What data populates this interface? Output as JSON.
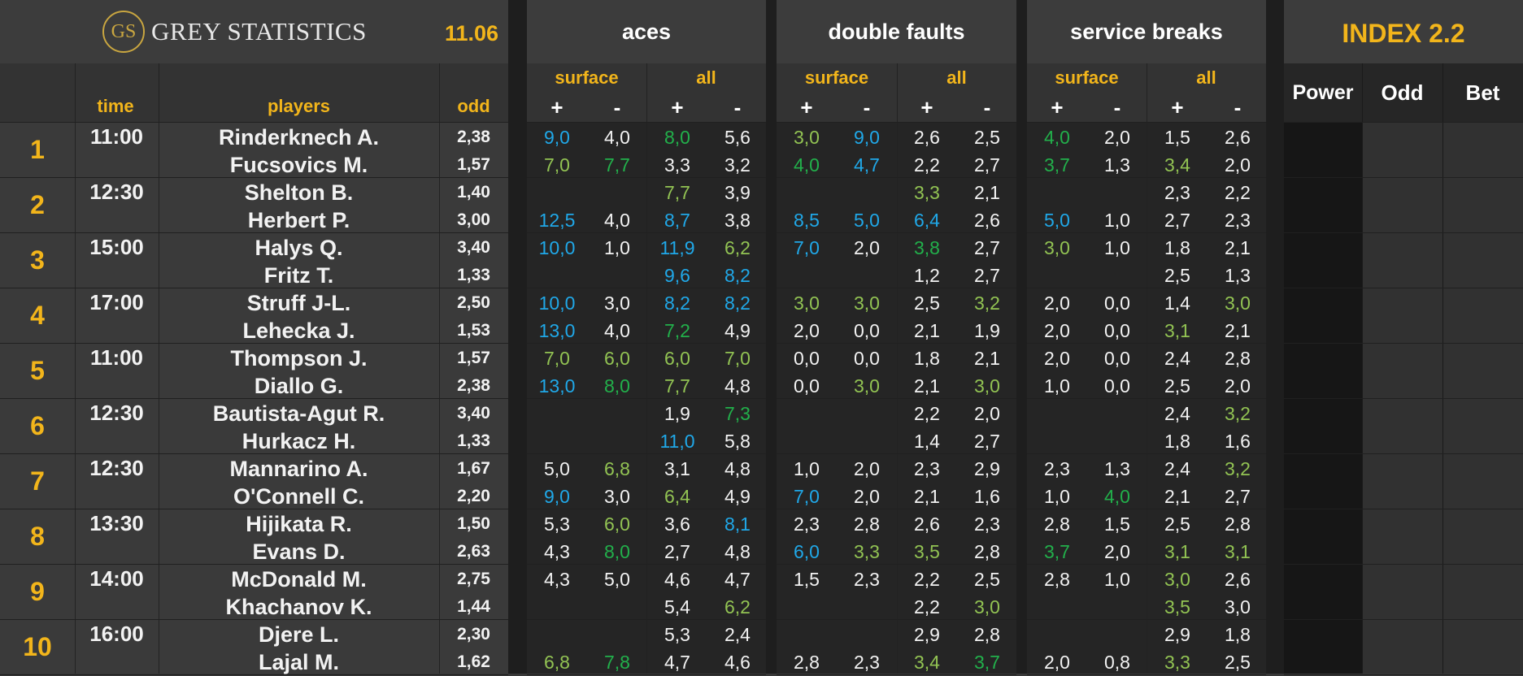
{
  "header": {
    "logo_mark": "GS",
    "brand": "GREY STATISTICS",
    "date": "11.06",
    "groups": [
      "aces",
      "double faults",
      "service breaks"
    ],
    "index_title": "INDEX 2.2",
    "sub_surface": "surface",
    "sub_all": "all",
    "plus": "+",
    "minus": "-",
    "col_time": "time",
    "col_players": "players",
    "col_odd": "odd",
    "col_power": "Power",
    "col_odd2": "Odd",
    "col_bet": "Bet"
  },
  "colors": {
    "blue": "#20a8e8",
    "green": "#22b04b",
    "lightgreen": "#92c353",
    "gold": "#f2b51b"
  },
  "matches": [
    {
      "n": "1",
      "time": "11:00",
      "rows": [
        {
          "player": "Rinderknech A.",
          "odd": "2,38",
          "v": [
            [
              "9,0",
              "b"
            ],
            [
              "4,0",
              "w"
            ],
            [
              "8,0",
              "g"
            ],
            [
              "5,6",
              "w"
            ],
            [
              "3,0",
              "l"
            ],
            [
              "9,0",
              "b"
            ],
            [
              "2,6",
              "w"
            ],
            [
              "2,5",
              "w"
            ],
            [
              "4,0",
              "g"
            ],
            [
              "2,0",
              "w"
            ],
            [
              "1,5",
              "w"
            ],
            [
              "2,6",
              "w"
            ]
          ]
        },
        {
          "player": "Fucsovics M.",
          "odd": "1,57",
          "v": [
            [
              "7,0",
              "l"
            ],
            [
              "7,7",
              "g"
            ],
            [
              "3,3",
              "w"
            ],
            [
              "3,2",
              "w"
            ],
            [
              "4,0",
              "g"
            ],
            [
              "4,7",
              "b"
            ],
            [
              "2,2",
              "w"
            ],
            [
              "2,7",
              "w"
            ],
            [
              "3,7",
              "g"
            ],
            [
              "1,3",
              "w"
            ],
            [
              "3,4",
              "l"
            ],
            [
              "2,0",
              "w"
            ]
          ]
        }
      ]
    },
    {
      "n": "2",
      "time": "12:30",
      "rows": [
        {
          "player": "Shelton B.",
          "odd": "1,40",
          "v": [
            [
              "",
              ""
            ],
            [
              "",
              ""
            ],
            [
              "7,7",
              "l"
            ],
            [
              "3,9",
              "w"
            ],
            [
              "",
              ""
            ],
            [
              "",
              ""
            ],
            [
              "3,3",
              "l"
            ],
            [
              "2,1",
              "w"
            ],
            [
              "",
              ""
            ],
            [
              "",
              ""
            ],
            [
              "2,3",
              "w"
            ],
            [
              "2,2",
              "w"
            ]
          ]
        },
        {
          "player": "Herbert P.",
          "odd": "3,00",
          "v": [
            [
              "12,5",
              "b"
            ],
            [
              "4,0",
              "w"
            ],
            [
              "8,7",
              "b"
            ],
            [
              "3,8",
              "w"
            ],
            [
              "8,5",
              "b"
            ],
            [
              "5,0",
              "b"
            ],
            [
              "6,4",
              "b"
            ],
            [
              "2,6",
              "w"
            ],
            [
              "5,0",
              "b"
            ],
            [
              "1,0",
              "w"
            ],
            [
              "2,7",
              "w"
            ],
            [
              "2,3",
              "w"
            ]
          ]
        }
      ]
    },
    {
      "n": "3",
      "time": "15:00",
      "rows": [
        {
          "player": "Halys Q.",
          "odd": "3,40",
          "v": [
            [
              "10,0",
              "b"
            ],
            [
              "1,0",
              "w"
            ],
            [
              "11,9",
              "b"
            ],
            [
              "6,2",
              "l"
            ],
            [
              "7,0",
              "b"
            ],
            [
              "2,0",
              "w"
            ],
            [
              "3,8",
              "g"
            ],
            [
              "2,7",
              "w"
            ],
            [
              "3,0",
              "l"
            ],
            [
              "1,0",
              "w"
            ],
            [
              "1,8",
              "w"
            ],
            [
              "2,1",
              "w"
            ]
          ]
        },
        {
          "player": "Fritz T.",
          "odd": "1,33",
          "v": [
            [
              "",
              ""
            ],
            [
              "",
              ""
            ],
            [
              "9,6",
              "b"
            ],
            [
              "8,2",
              "b"
            ],
            [
              "",
              ""
            ],
            [
              "",
              ""
            ],
            [
              "1,2",
              "w"
            ],
            [
              "2,7",
              "w"
            ],
            [
              "",
              ""
            ],
            [
              "",
              ""
            ],
            [
              "2,5",
              "w"
            ],
            [
              "1,3",
              "w"
            ]
          ]
        }
      ]
    },
    {
      "n": "4",
      "time": "17:00",
      "rows": [
        {
          "player": "Struff J-L.",
          "odd": "2,50",
          "v": [
            [
              "10,0",
              "b"
            ],
            [
              "3,0",
              "w"
            ],
            [
              "8,2",
              "b"
            ],
            [
              "8,2",
              "b"
            ],
            [
              "3,0",
              "l"
            ],
            [
              "3,0",
              "l"
            ],
            [
              "2,5",
              "w"
            ],
            [
              "3,2",
              "l"
            ],
            [
              "2,0",
              "w"
            ],
            [
              "0,0",
              "w"
            ],
            [
              "1,4",
              "w"
            ],
            [
              "3,0",
              "l"
            ]
          ]
        },
        {
          "player": "Lehecka J.",
          "odd": "1,53",
          "v": [
            [
              "13,0",
              "b"
            ],
            [
              "4,0",
              "w"
            ],
            [
              "7,2",
              "g"
            ],
            [
              "4,9",
              "w"
            ],
            [
              "2,0",
              "w"
            ],
            [
              "0,0",
              "w"
            ],
            [
              "2,1",
              "w"
            ],
            [
              "1,9",
              "w"
            ],
            [
              "2,0",
              "w"
            ],
            [
              "0,0",
              "w"
            ],
            [
              "3,1",
              "l"
            ],
            [
              "2,1",
              "w"
            ]
          ]
        }
      ]
    },
    {
      "n": "5",
      "time": "11:00",
      "rows": [
        {
          "player": "Thompson J.",
          "odd": "1,57",
          "v": [
            [
              "7,0",
              "l"
            ],
            [
              "6,0",
              "l"
            ],
            [
              "6,0",
              "l"
            ],
            [
              "7,0",
              "l"
            ],
            [
              "0,0",
              "w"
            ],
            [
              "0,0",
              "w"
            ],
            [
              "1,8",
              "w"
            ],
            [
              "2,1",
              "w"
            ],
            [
              "2,0",
              "w"
            ],
            [
              "0,0",
              "w"
            ],
            [
              "2,4",
              "w"
            ],
            [
              "2,8",
              "w"
            ]
          ]
        },
        {
          "player": "Diallo G.",
          "odd": "2,38",
          "v": [
            [
              "13,0",
              "b"
            ],
            [
              "8,0",
              "g"
            ],
            [
              "7,7",
              "l"
            ],
            [
              "4,8",
              "w"
            ],
            [
              "0,0",
              "w"
            ],
            [
              "3,0",
              "l"
            ],
            [
              "2,1",
              "w"
            ],
            [
              "3,0",
              "l"
            ],
            [
              "1,0",
              "w"
            ],
            [
              "0,0",
              "w"
            ],
            [
              "2,5",
              "w"
            ],
            [
              "2,0",
              "w"
            ]
          ]
        }
      ]
    },
    {
      "n": "6",
      "time": "12:30",
      "rows": [
        {
          "player": "Bautista-Agut R.",
          "odd": "3,40",
          "v": [
            [
              "",
              ""
            ],
            [
              "",
              ""
            ],
            [
              "1,9",
              "w"
            ],
            [
              "7,3",
              "g"
            ],
            [
              "",
              ""
            ],
            [
              "",
              ""
            ],
            [
              "2,2",
              "w"
            ],
            [
              "2,0",
              "w"
            ],
            [
              "",
              ""
            ],
            [
              "",
              ""
            ],
            [
              "2,4",
              "w"
            ],
            [
              "3,2",
              "l"
            ]
          ]
        },
        {
          "player": "Hurkacz H.",
          "odd": "1,33",
          "v": [
            [
              "",
              ""
            ],
            [
              "",
              ""
            ],
            [
              "11,0",
              "b"
            ],
            [
              "5,8",
              "w"
            ],
            [
              "",
              ""
            ],
            [
              "",
              ""
            ],
            [
              "1,4",
              "w"
            ],
            [
              "2,7",
              "w"
            ],
            [
              "",
              ""
            ],
            [
              "",
              ""
            ],
            [
              "1,8",
              "w"
            ],
            [
              "1,6",
              "w"
            ]
          ]
        }
      ]
    },
    {
      "n": "7",
      "time": "12:30",
      "rows": [
        {
          "player": "Mannarino A.",
          "odd": "1,67",
          "v": [
            [
              "5,0",
              "w"
            ],
            [
              "6,8",
              "l"
            ],
            [
              "3,1",
              "w"
            ],
            [
              "4,8",
              "w"
            ],
            [
              "1,0",
              "w"
            ],
            [
              "2,0",
              "w"
            ],
            [
              "2,3",
              "w"
            ],
            [
              "2,9",
              "w"
            ],
            [
              "2,3",
              "w"
            ],
            [
              "1,3",
              "w"
            ],
            [
              "2,4",
              "w"
            ],
            [
              "3,2",
              "l"
            ]
          ]
        },
        {
          "player": "O'Connell C.",
          "odd": "2,20",
          "v": [
            [
              "9,0",
              "b"
            ],
            [
              "3,0",
              "w"
            ],
            [
              "6,4",
              "l"
            ],
            [
              "4,9",
              "w"
            ],
            [
              "7,0",
              "b"
            ],
            [
              "2,0",
              "w"
            ],
            [
              "2,1",
              "w"
            ],
            [
              "1,6",
              "w"
            ],
            [
              "1,0",
              "w"
            ],
            [
              "4,0",
              "g"
            ],
            [
              "2,1",
              "w"
            ],
            [
              "2,7",
              "w"
            ]
          ]
        }
      ]
    },
    {
      "n": "8",
      "time": "13:30",
      "rows": [
        {
          "player": "Hijikata R.",
          "odd": "1,50",
          "v": [
            [
              "5,3",
              "w"
            ],
            [
              "6,0",
              "l"
            ],
            [
              "3,6",
              "w"
            ],
            [
              "8,1",
              "b"
            ],
            [
              "2,3",
              "w"
            ],
            [
              "2,8",
              "w"
            ],
            [
              "2,6",
              "w"
            ],
            [
              "2,3",
              "w"
            ],
            [
              "2,8",
              "w"
            ],
            [
              "1,5",
              "w"
            ],
            [
              "2,5",
              "w"
            ],
            [
              "2,8",
              "w"
            ]
          ]
        },
        {
          "player": "Evans D.",
          "odd": "2,63",
          "v": [
            [
              "4,3",
              "w"
            ],
            [
              "8,0",
              "g"
            ],
            [
              "2,7",
              "w"
            ],
            [
              "4,8",
              "w"
            ],
            [
              "6,0",
              "b"
            ],
            [
              "3,3",
              "l"
            ],
            [
              "3,5",
              "l"
            ],
            [
              "2,8",
              "w"
            ],
            [
              "3,7",
              "g"
            ],
            [
              "2,0",
              "w"
            ],
            [
              "3,1",
              "l"
            ],
            [
              "3,1",
              "l"
            ]
          ]
        }
      ]
    },
    {
      "n": "9",
      "time": "14:00",
      "rows": [
        {
          "player": "McDonald M.",
          "odd": "2,75",
          "v": [
            [
              "4,3",
              "w"
            ],
            [
              "5,0",
              "w"
            ],
            [
              "4,6",
              "w"
            ],
            [
              "4,7",
              "w"
            ],
            [
              "1,5",
              "w"
            ],
            [
              "2,3",
              "w"
            ],
            [
              "2,2",
              "w"
            ],
            [
              "2,5",
              "w"
            ],
            [
              "2,8",
              "w"
            ],
            [
              "1,0",
              "w"
            ],
            [
              "3,0",
              "l"
            ],
            [
              "2,6",
              "w"
            ]
          ]
        },
        {
          "player": "Khachanov K.",
          "odd": "1,44",
          "v": [
            [
              "",
              ""
            ],
            [
              "",
              ""
            ],
            [
              "5,4",
              "w"
            ],
            [
              "6,2",
              "l"
            ],
            [
              "",
              ""
            ],
            [
              "",
              ""
            ],
            [
              "2,2",
              "w"
            ],
            [
              "3,0",
              "l"
            ],
            [
              "",
              ""
            ],
            [
              "",
              ""
            ],
            [
              "3,5",
              "l"
            ],
            [
              "3,0",
              "w"
            ]
          ]
        }
      ]
    },
    {
      "n": "10",
      "time": "16:00",
      "rows": [
        {
          "player": "Djere L.",
          "odd": "2,30",
          "v": [
            [
              "",
              ""
            ],
            [
              "",
              ""
            ],
            [
              "5,3",
              "w"
            ],
            [
              "2,4",
              "w"
            ],
            [
              "",
              ""
            ],
            [
              "",
              ""
            ],
            [
              "2,9",
              "w"
            ],
            [
              "2,8",
              "w"
            ],
            [
              "",
              ""
            ],
            [
              "",
              ""
            ],
            [
              "2,9",
              "w"
            ],
            [
              "1,8",
              "w"
            ]
          ]
        },
        {
          "player": "Lajal M.",
          "odd": "1,62",
          "v": [
            [
              "6,8",
              "l"
            ],
            [
              "7,8",
              "g"
            ],
            [
              "4,7",
              "w"
            ],
            [
              "4,6",
              "w"
            ],
            [
              "2,8",
              "w"
            ],
            [
              "2,3",
              "w"
            ],
            [
              "3,4",
              "l"
            ],
            [
              "3,7",
              "g"
            ],
            [
              "2,0",
              "w"
            ],
            [
              "0,8",
              "w"
            ],
            [
              "3,3",
              "l"
            ],
            [
              "2,5",
              "w"
            ]
          ]
        }
      ]
    }
  ]
}
